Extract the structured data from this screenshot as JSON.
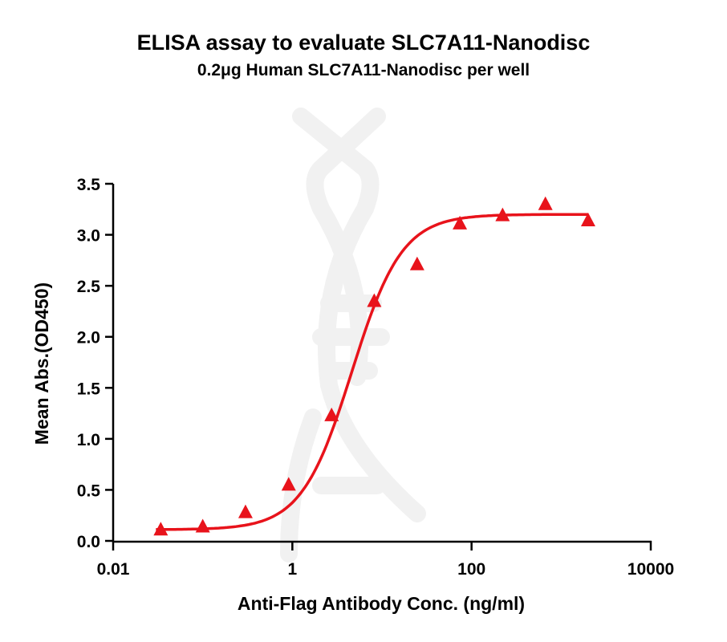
{
  "chart_data": {
    "type": "scatter",
    "title": "ELISA assay to evaluate SLC7A11-Nanodisc",
    "subtitle": "0.2μg Human SLC7A11-Nanodisc per well",
    "xlabel": "Anti-Flag Antibody Conc. (ng/ml)",
    "ylabel": "Mean Abs.(OD450)",
    "x_scale": "log",
    "xlim": [
      0.01,
      10000
    ],
    "ylim": [
      0,
      3.5
    ],
    "x_ticks": [
      "0.01",
      "1",
      "100",
      "10000"
    ],
    "y_ticks": [
      "0.0",
      "0.5",
      "1.0",
      "1.5",
      "2.0",
      "2.5",
      "3.0",
      "3.5"
    ],
    "grid": false,
    "marker": "triangle",
    "color": "#e8131b",
    "x": [
      0.034,
      0.1,
      0.3,
      0.91,
      2.74,
      8.2,
      24.7,
      74,
      222,
      667,
      2000
    ],
    "y": [
      0.1,
      0.13,
      0.27,
      0.54,
      1.22,
      2.34,
      2.7,
      3.1,
      3.18,
      3.29,
      3.13
    ],
    "fit": {
      "model": "4PL",
      "bottom": 0.11,
      "top": 3.2,
      "ec50": 4.6,
      "hill": 1.55,
      "x_range": [
        0.03,
        2000
      ]
    }
  }
}
